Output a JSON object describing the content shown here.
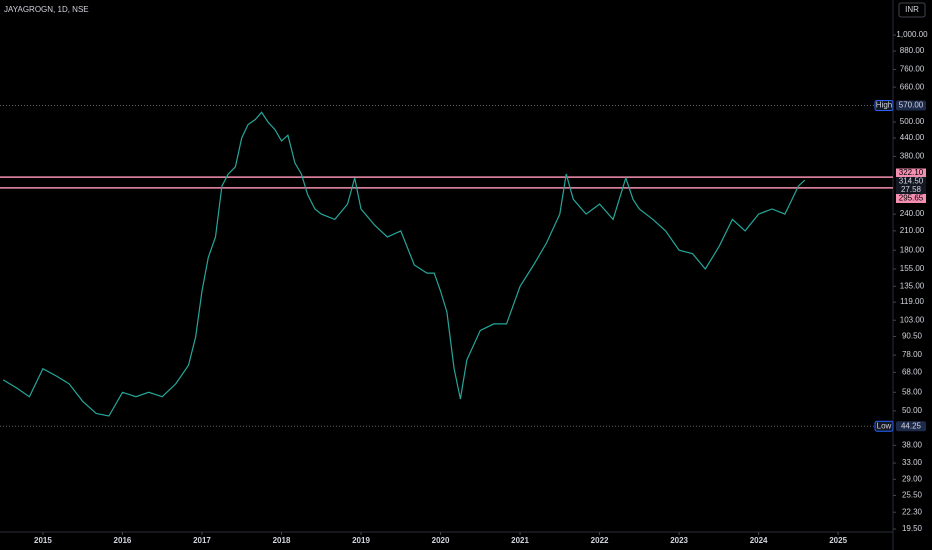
{
  "chart_data": {
    "type": "line",
    "title": "JAYAGROGN, 1D, NSE",
    "currency": "INR",
    "log_scale": true,
    "color": "#26a69a",
    "x": [
      2014.5,
      2014.67,
      2014.83,
      2015.0,
      2015.17,
      2015.33,
      2015.5,
      2015.67,
      2015.83,
      2016.0,
      2016.17,
      2016.33,
      2016.5,
      2016.67,
      2016.83,
      2016.92,
      2017.0,
      2017.08,
      2017.17,
      2017.25,
      2017.33,
      2017.42,
      2017.5,
      2017.58,
      2017.67,
      2017.75,
      2017.83,
      2017.92,
      2018.0,
      2018.08,
      2018.17,
      2018.25,
      2018.33,
      2018.42,
      2018.5,
      2018.67,
      2018.83,
      2018.92,
      2019.0,
      2019.17,
      2019.33,
      2019.5,
      2019.67,
      2019.83,
      2019.92,
      2020.0,
      2020.08,
      2020.17,
      2020.25,
      2020.33,
      2020.5,
      2020.67,
      2020.83,
      2021.0,
      2021.17,
      2021.33,
      2021.5,
      2021.58,
      2021.67,
      2021.83,
      2022.0,
      2022.17,
      2022.33,
      2022.42,
      2022.5,
      2022.67,
      2022.83,
      2023.0,
      2023.17,
      2023.33,
      2023.5,
      2023.67,
      2023.83,
      2024.0,
      2024.17,
      2024.33,
      2024.5,
      2024.58
    ],
    "values": [
      64,
      60,
      56,
      70,
      66,
      62,
      54,
      49,
      48,
      58,
      56,
      58,
      56,
      62,
      72,
      90,
      130,
      170,
      200,
      300,
      330,
      350,
      440,
      490,
      510,
      540,
      500,
      470,
      430,
      450,
      360,
      330,
      280,
      250,
      240,
      230,
      260,
      320,
      250,
      220,
      200,
      210,
      160,
      150,
      150,
      130,
      110,
      70,
      55,
      75,
      95,
      100,
      100,
      135,
      160,
      190,
      240,
      330,
      270,
      240,
      260,
      230,
      320,
      270,
      250,
      230,
      210,
      180,
      175,
      155,
      185,
      230,
      210,
      240,
      250,
      240,
      300,
      314.5
    ],
    "xlim": [
      2014.46,
      2025.69
    ],
    "ylim": [
      19.05,
      1322
    ],
    "xticks": [
      2015,
      2016,
      2017,
      2018,
      2019,
      2020,
      2021,
      2022,
      2023,
      2024,
      2025
    ],
    "yticks": [
      {
        "value": 1000,
        "label": "1,000.00"
      },
      {
        "value": 880,
        "label": "880.00"
      },
      {
        "value": 760,
        "label": "760.00"
      },
      {
        "value": 660,
        "label": "660.00"
      },
      {
        "value": 500,
        "label": "500.00"
      },
      {
        "value": 440,
        "label": "440.00"
      },
      {
        "value": 380,
        "label": "380.00"
      },
      {
        "value": 240,
        "label": "240.00"
      },
      {
        "value": 210,
        "label": "210.00"
      },
      {
        "value": 180,
        "label": "180.00"
      },
      {
        "value": 155,
        "label": "155.00"
      },
      {
        "value": 135,
        "label": "135.00"
      },
      {
        "value": 119,
        "label": "119.00"
      },
      {
        "value": 103,
        "label": "103.00"
      },
      {
        "value": 90.5,
        "label": "90.50"
      },
      {
        "value": 78,
        "label": "78.00"
      },
      {
        "value": 68,
        "label": "68.00"
      },
      {
        "value": 58,
        "label": "58.00"
      },
      {
        "value": 50,
        "label": "50.00"
      },
      {
        "value": 38,
        "label": "38.00"
      },
      {
        "value": 33,
        "label": "33.00"
      },
      {
        "value": 29,
        "label": "29.00"
      },
      {
        "value": 25.5,
        "label": "25.50"
      },
      {
        "value": 22.3,
        "label": "22.30"
      },
      {
        "value": 19.5,
        "label": "19.50"
      }
    ],
    "levels": [
      {
        "name": "High",
        "value": {
          "value": 570,
          "label": "570.00"
        }
      },
      {
        "name": "Low",
        "value": 44.25
      }
    ],
    "hlines": [
      {
        "value": 322.1,
        "label": "322.10"
      },
      295.65
    ],
    "line_color": "#f48fb1",
    "last_price": {
      "value": 314.5,
      "label": "314.50"
    },
    "last_note": "27.58"
  }
}
